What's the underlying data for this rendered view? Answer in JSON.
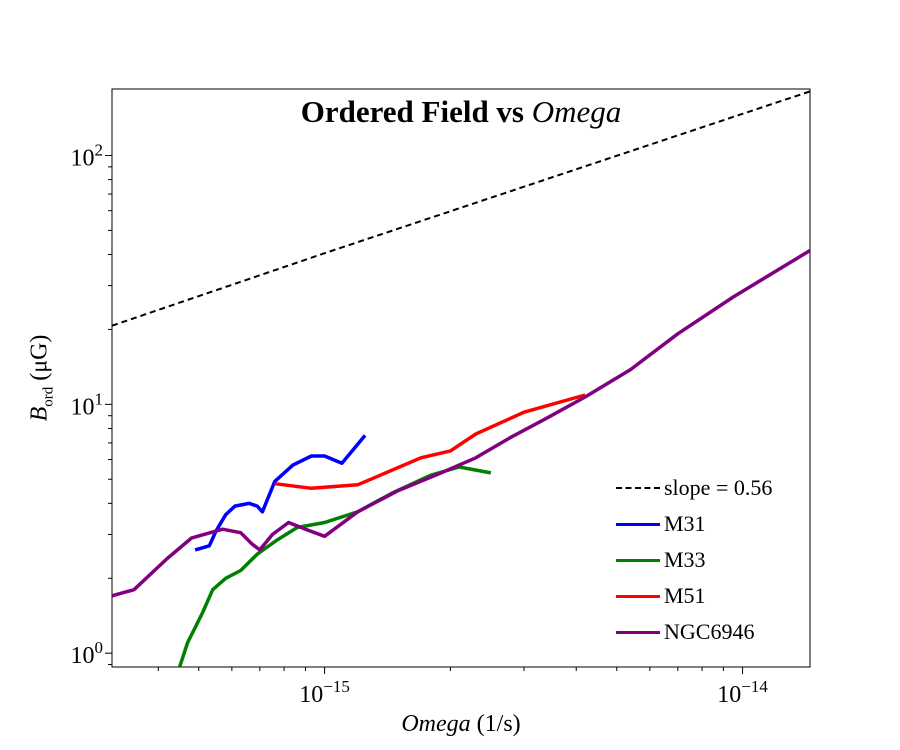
{
  "chart_data": {
    "type": "line",
    "title_main": "Ordered Field vs",
    "title_italic": "Omega",
    "xlabel_italic": "Omega",
    "xlabel_unit": "(1/s)",
    "ylabel_symbol": "B",
    "ylabel_subscript": "ord",
    "ylabel_unit": "(μG)",
    "x_scale": "log",
    "y_scale": "log",
    "xlim": [
      3.1e-16,
      1.45e-14
    ],
    "ylim": [
      0.88,
      185
    ],
    "x_ticks": [
      {
        "value": 1e-15,
        "base": "10",
        "exp": "−15"
      },
      {
        "value": 1e-14,
        "base": "10",
        "exp": "−14"
      }
    ],
    "y_ticks": [
      {
        "value": 1,
        "base": "10",
        "exp": "0"
      },
      {
        "value": 10,
        "base": "10",
        "exp": "1"
      },
      {
        "value": 100,
        "base": "10",
        "exp": "2"
      }
    ],
    "grid": false,
    "legend_position": "lower-right",
    "series": [
      {
        "name": "slope = 0.56",
        "color": "#000000",
        "dashed": true,
        "x": [
          3.1e-16,
          1e-15,
          1e-14,
          1.45e-14
        ],
        "y": [
          20.7,
          40.5,
          147,
          181
        ]
      },
      {
        "name": "M31",
        "color": "#0000ff",
        "dashed": false,
        "x": [
          4.9e-16,
          5.3e-16,
          5.5e-16,
          5.8e-16,
          6.1e-16,
          6.6e-16,
          6.9e-16,
          7.1e-16,
          7.6e-16,
          8.4e-16,
          9.3e-16,
          1e-15,
          1.1e-15,
          1.25e-15
        ],
        "y": [
          2.6,
          2.7,
          3.1,
          3.6,
          3.9,
          4.0,
          3.9,
          3.7,
          4.9,
          5.7,
          6.2,
          6.2,
          5.8,
          7.5
        ]
      },
      {
        "name": "M33",
        "color": "#008000",
        "dashed": false,
        "x": [
          4.5e-16,
          4.7e-16,
          5.1e-16,
          5.4e-16,
          5.8e-16,
          6.3e-16,
          6.9e-16,
          7.7e-16,
          8.6e-16,
          1e-15,
          1.2e-15,
          1.45e-15,
          1.8e-15,
          2.1e-15,
          2.5e-15
        ],
        "y": [
          0.88,
          1.1,
          1.45,
          1.8,
          2.0,
          2.15,
          2.5,
          2.85,
          3.2,
          3.35,
          3.7,
          4.4,
          5.2,
          5.6,
          5.3
        ]
      },
      {
        "name": "M51",
        "color": "#ff0000",
        "dashed": false,
        "x": [
          7.6e-16,
          9.3e-16,
          1.2e-15,
          1.4e-15,
          1.7e-15,
          2e-15,
          2.3e-15,
          3e-15,
          4.2e-15
        ],
        "y": [
          4.8,
          4.6,
          4.75,
          5.3,
          6.1,
          6.5,
          7.6,
          9.3,
          10.9
        ]
      },
      {
        "name": "NGC6946",
        "color": "#800080",
        "dashed": false,
        "x": [
          3.1e-16,
          3.5e-16,
          4.2e-16,
          4.8e-16,
          5.7e-16,
          6.3e-16,
          6.7e-16,
          7e-16,
          7.5e-16,
          8.2e-16,
          9e-16,
          1e-15,
          1.2e-15,
          1.5e-15,
          1.9e-15,
          2.3e-15,
          2.8e-15,
          3.4e-15,
          4.2e-15,
          5.4e-15,
          7e-15,
          9.5e-15,
          1.45e-14
        ],
        "y": [
          1.7,
          1.8,
          2.4,
          2.9,
          3.15,
          3.05,
          2.75,
          2.6,
          3.0,
          3.35,
          3.15,
          2.95,
          3.7,
          4.5,
          5.3,
          6.1,
          7.4,
          8.8,
          10.7,
          13.8,
          19.2,
          27.0,
          41.5
        ]
      }
    ]
  }
}
